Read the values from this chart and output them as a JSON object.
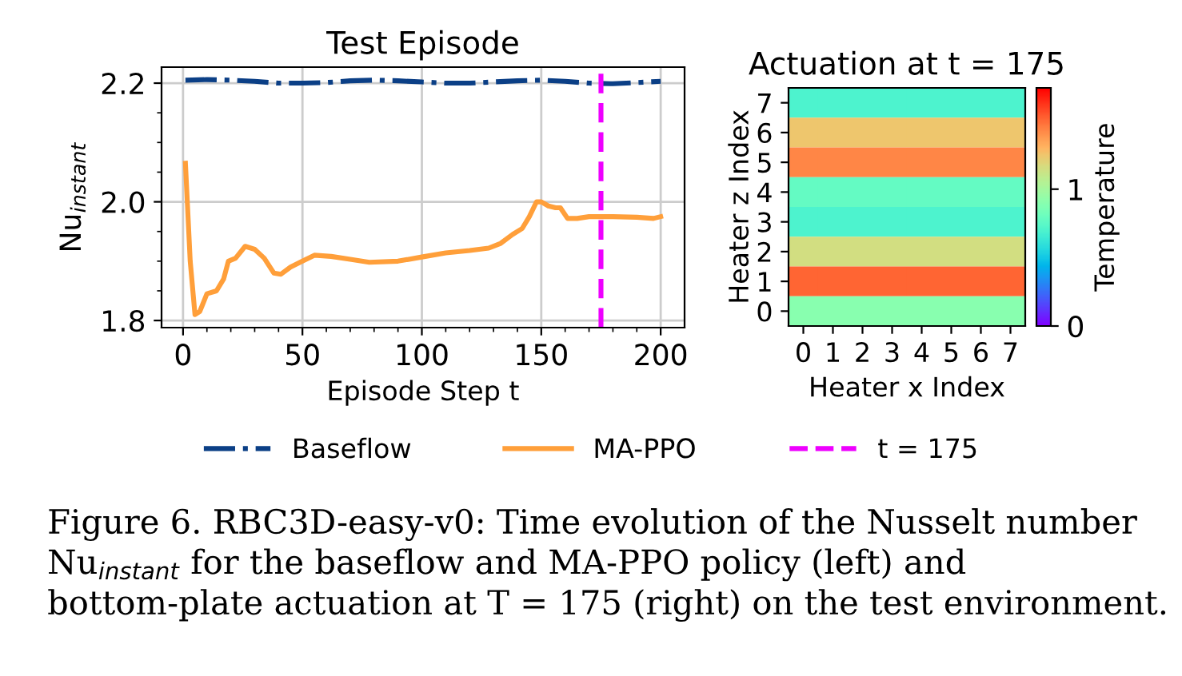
{
  "chart_data": [
    {
      "type": "line",
      "title": "Test Episode",
      "xlabel": "Episode Step t",
      "ylabel": "Nu$_{instant}$",
      "xlim": [
        -9,
        210
      ],
      "ylim": [
        1.788,
        2.227
      ],
      "xticks": [
        0,
        {
          "value": 10,
          "label": null
        },
        {
          "value": 20,
          "label": null
        },
        {
          "value": 30,
          "label": null
        },
        {
          "value": 40,
          "label": null
        },
        50,
        {
          "value": 60,
          "label": null
        },
        {
          "value": 70,
          "label": null
        },
        {
          "value": 80,
          "label": null
        },
        {
          "value": 90,
          "label": null
        },
        100,
        {
          "value": 110,
          "label": null
        },
        {
          "value": 120,
          "label": null
        },
        {
          "value": 130,
          "label": null
        },
        {
          "value": 140,
          "label": null
        },
        150,
        {
          "value": 160,
          "label": null
        },
        {
          "value": 170,
          "label": null
        },
        {
          "value": 180,
          "label": null
        },
        {
          "value": 190,
          "label": null
        },
        200
      ],
      "yticks": [
        1.8,
        {
          "value": 1.85,
          "label": null
        },
        {
          "value": 1.9,
          "label": null
        },
        {
          "value": 1.95,
          "label": null
        },
        {
          "value": 2,
          "label": "2.0"
        },
        {
          "value": 2.05,
          "label": null
        },
        {
          "value": 2.1,
          "label": null
        },
        {
          "value": 2.15,
          "label": null
        },
        2.2
      ],
      "grid": true,
      "legend": "bottom",
      "series": [
        {
          "name": "Baseflow",
          "color": "#0b3f86",
          "line_style": "dashdot",
          "x": [
            1,
            10,
            20,
            30,
            40,
            50,
            60,
            70,
            80,
            90,
            100,
            110,
            120,
            130,
            140,
            150,
            160,
            170,
            180,
            190,
            200
          ],
          "values": [
            2.205,
            2.206,
            2.205,
            2.203,
            2.2,
            2.2,
            2.201,
            2.204,
            2.205,
            2.204,
            2.202,
            2.2,
            2.2,
            2.202,
            2.204,
            2.205,
            2.203,
            2.2,
            2.199,
            2.201,
            2.203
          ]
        },
        {
          "name": "MA-PPO",
          "color": "#ff9f3a",
          "line_style": "solid",
          "x": [
            1,
            3,
            5,
            7,
            10,
            14,
            17,
            19,
            22,
            26,
            30,
            34,
            38,
            41,
            45,
            50,
            55,
            62,
            70,
            78,
            90,
            100,
            110,
            120,
            128,
            133,
            138,
            142,
            145,
            148,
            150,
            153,
            156,
            158,
            161,
            165,
            170,
            180,
            190,
            197,
            200
          ],
          "values": [
            2.065,
            1.9,
            1.81,
            1.815,
            1.845,
            1.85,
            1.87,
            1.9,
            1.905,
            1.925,
            1.92,
            1.905,
            1.88,
            1.878,
            1.89,
            1.9,
            1.91,
            1.908,
            1.903,
            1.898,
            1.9,
            1.907,
            1.914,
            1.918,
            1.922,
            1.93,
            1.945,
            1.955,
            1.975,
            2.0,
            2.0,
            1.993,
            1.99,
            1.99,
            1.972,
            1.972,
            1.975,
            1.975,
            1.974,
            1.972,
            1.975
          ]
        }
      ],
      "ref_lines": [
        {
          "axis": "x",
          "value": 175,
          "label": "t = 175",
          "color": "#ee00ff",
          "line_style": "dashed"
        }
      ],
      "annotations": [
        "Figure 6. RBC3D-easy-v0: Time evolution of the Nusselt number Nu$_{instant}$ for the baseflow and MA-PPO policy (left) and bottom-plate actuation at T = 175 (right) on the test environment."
      ]
    },
    {
      "type": "heatmap",
      "title": "Actuation at t = 175",
      "xlabel": "Heater x Index",
      "ylabel": "Heater z Index",
      "clabel": "Temperature",
      "categories": [
        "0",
        "1",
        "2",
        "3",
        "4",
        "5",
        "6",
        "7"
      ],
      "y_categories": [
        "7",
        "6",
        "5",
        "4",
        "3",
        "2",
        "1",
        "0"
      ],
      "clim": [
        0,
        1.74
      ],
      "cticks": [
        0,
        1
      ],
      "cells": [
        [
          0.7,
          0.7,
          0.7,
          0.7,
          0.7,
          0.7,
          0.7,
          0.7
        ],
        [
          1.25,
          1.25,
          1.25,
          1.25,
          1.25,
          1.25,
          1.25,
          1.25
        ],
        [
          1.43,
          1.43,
          1.43,
          1.43,
          1.43,
          1.43,
          1.43,
          1.43
        ],
        [
          0.78,
          0.78,
          0.78,
          0.78,
          0.78,
          0.78,
          0.78,
          0.78
        ],
        [
          0.7,
          0.7,
          0.7,
          0.7,
          0.7,
          0.7,
          0.7,
          0.7
        ],
        [
          1.15,
          1.15,
          1.15,
          1.15,
          1.15,
          1.15,
          1.15,
          1.15
        ],
        [
          1.51,
          1.51,
          1.51,
          1.51,
          1.51,
          1.51,
          1.51,
          1.51
        ],
        [
          0.9,
          0.9,
          0.9,
          0.9,
          0.9,
          0.9,
          0.9,
          0.9
        ]
      ]
    }
  ]
}
